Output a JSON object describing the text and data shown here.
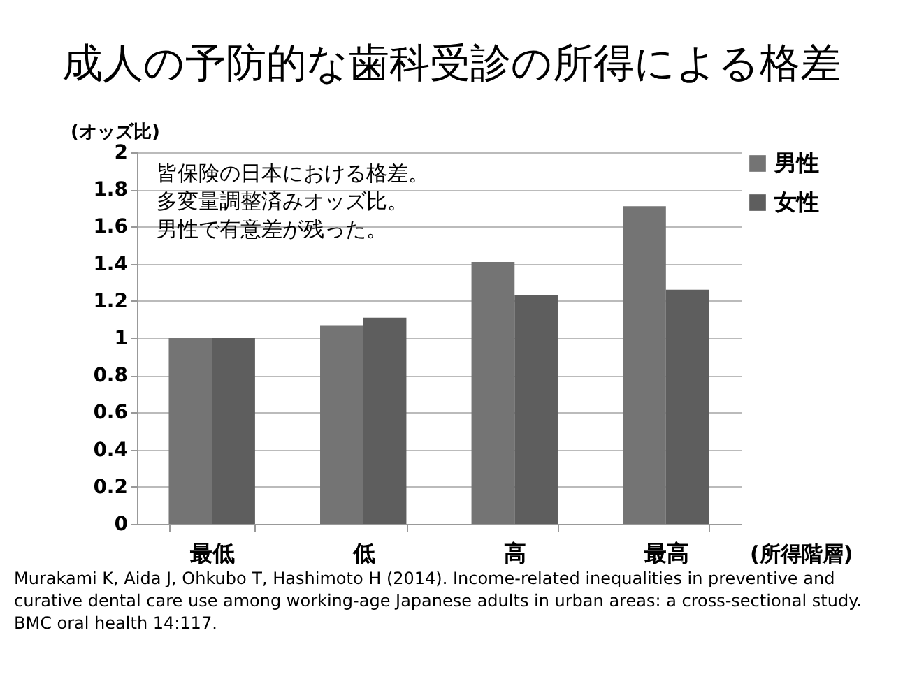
{
  "chart_data": {
    "type": "bar",
    "title": "成人の予防的な歯科受診の所得による格差",
    "ylabel": "(オッズ比)",
    "xlabel": "(所得階層)",
    "categories": [
      "最低",
      "低",
      "高",
      "最高"
    ],
    "series": [
      {
        "name": "男性",
        "color": "#747474",
        "values": [
          1.0,
          1.07,
          1.41,
          1.71
        ]
      },
      {
        "name": "女性",
        "color": "#5e5e5e",
        "values": [
          1.0,
          1.11,
          1.23,
          1.26
        ]
      }
    ],
    "ylim": [
      0,
      2
    ],
    "yticks": [
      0,
      0.2,
      0.4,
      0.6,
      0.8,
      1,
      1.2,
      1.4,
      1.6,
      1.8,
      2
    ],
    "grid": "y",
    "legend": "right",
    "annotations": [
      "皆保険の日本における格差。",
      "多変量調整済みオッズ比。",
      "男性で有意差が残った。",
      "Murakami K, Aida J, Ohkubo T, Hashimoto H (2014). Income-related inequalities in preventive and curative dental care use among working-age Japanese adults in urban areas: a cross-sectional study. BMC oral health 14:117."
    ]
  }
}
